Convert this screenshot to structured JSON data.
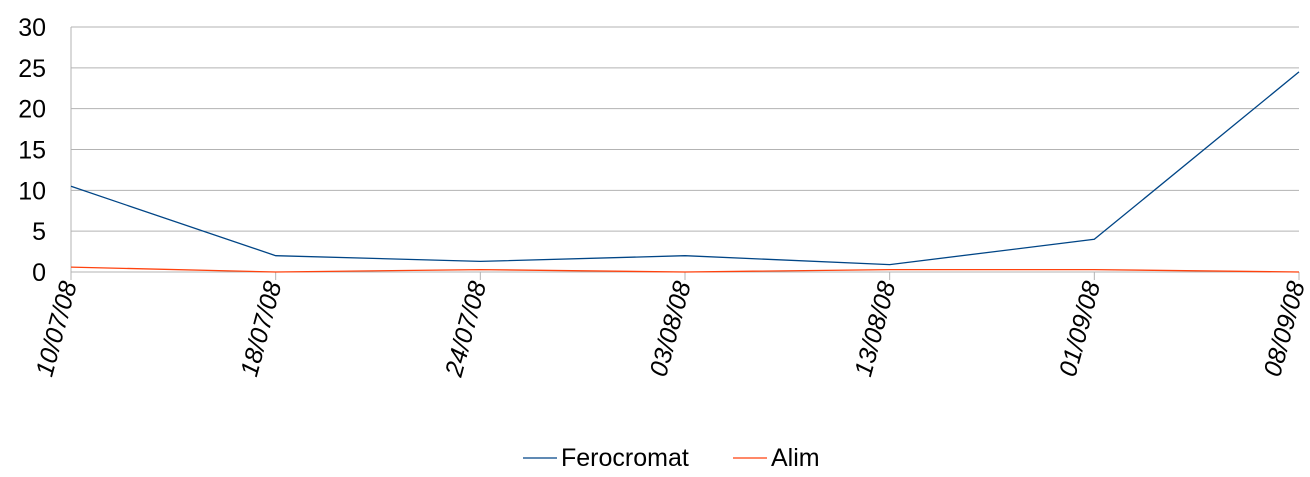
{
  "chart_data": {
    "type": "line",
    "categories": [
      "10/07/08",
      "18/07/08",
      "24/07/08",
      "03/08/08",
      "13/08/08",
      "01/09/08",
      "08/09/08"
    ],
    "series": [
      {
        "name": "Ferocromat",
        "color": "#004586",
        "values": [
          10.5,
          2.0,
          1.3,
          2.0,
          0.9,
          4.0,
          24.5
        ]
      },
      {
        "name": "Alim",
        "color": "#ff420e",
        "values": [
          0.6,
          0.0,
          0.3,
          0.0,
          0.3,
          0.3,
          0.0
        ]
      }
    ],
    "ylim": [
      0,
      30
    ],
    "yticks": [
      0,
      5,
      10,
      15,
      20,
      25,
      30
    ],
    "grid": true,
    "legend_position": "bottom"
  }
}
